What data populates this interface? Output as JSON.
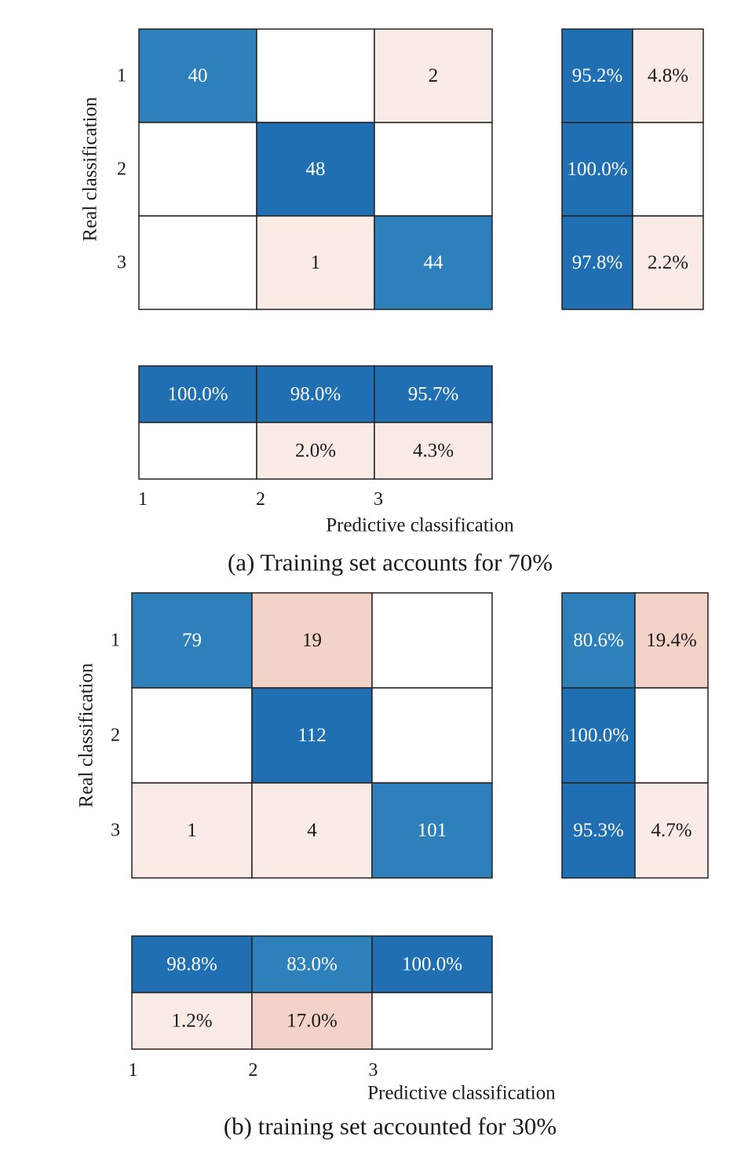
{
  "colors": {
    "blue_dark": "#1f6fb2",
    "blue_mid": "#2e80bb",
    "pink_light": "#faebe6",
    "pink_mid": "#f3d2c7",
    "white": "#ffffff",
    "border": "#222222"
  },
  "chart_data": [
    {
      "type": "heatmap",
      "caption": "(a) Training set accounts for 70%",
      "xlabel": "Predictive classification",
      "ylabel": "Real classification",
      "classes": [
        "1",
        "2",
        "3"
      ],
      "matrix": [
        [
          40,
          null,
          2
        ],
        [
          null,
          48,
          null
        ],
        [
          null,
          1,
          44
        ]
      ],
      "row_summary": [
        [
          "95.2%",
          "4.8%"
        ],
        [
          "100.0%",
          ""
        ],
        [
          "97.8%",
          "2.2%"
        ]
      ],
      "col_summary": [
        [
          "100.0%",
          "98.0%",
          "95.7%"
        ],
        [
          "",
          "2.0%",
          "4.3%"
        ]
      ]
    },
    {
      "type": "heatmap",
      "caption": "(b) training set accounted for 30%",
      "xlabel": "Predictive classification",
      "ylabel": "Real classification",
      "classes": [
        "1",
        "2",
        "3"
      ],
      "matrix": [
        [
          79,
          19,
          null
        ],
        [
          null,
          112,
          null
        ],
        [
          1,
          4,
          101
        ]
      ],
      "row_summary": [
        [
          "80.6%",
          "19.4%"
        ],
        [
          "100.0%",
          ""
        ],
        [
          "95.3%",
          "4.7%"
        ]
      ],
      "col_summary": [
        [
          "98.8%",
          "83.0%",
          "100.0%"
        ],
        [
          "1.2%",
          "17.0%",
          ""
        ]
      ]
    }
  ]
}
